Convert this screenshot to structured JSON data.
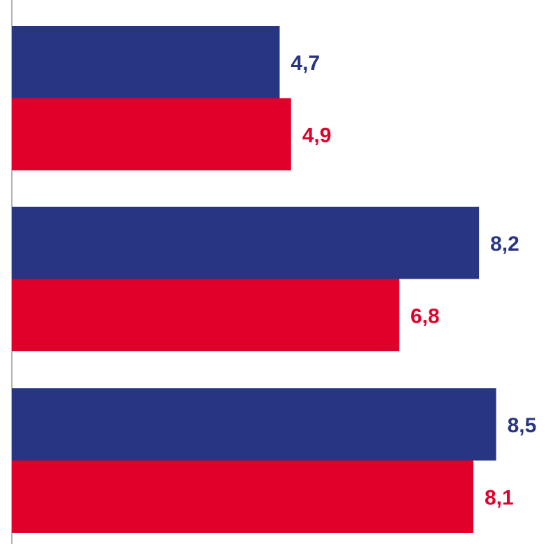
{
  "chart_data": {
    "type": "bar",
    "orientation": "horizontal",
    "title": "",
    "xlabel": "",
    "ylabel": "",
    "categories": [
      "",
      "",
      ""
    ],
    "xlim": [
      0,
      10
    ],
    "grid": false,
    "legend": "none",
    "series": [
      {
        "color": "#283582",
        "values": [
          4.7,
          8.2,
          8.5
        ],
        "labels": [
          "4,7",
          "8,2",
          "8,5"
        ]
      },
      {
        "color": "#e1002a",
        "values": [
          4.9,
          6.8,
          8.1
        ],
        "labels": [
          "4,9",
          "6,8",
          "8,1"
        ]
      }
    ]
  }
}
